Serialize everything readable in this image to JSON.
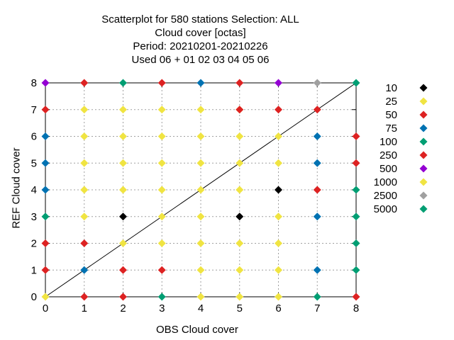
{
  "title_lines": [
    "Scatterplot for  580 stations Selection: ALL",
    "Cloud cover [octas]",
    "Period: 20210201-20210226",
    "Used  06  + 01 02 03 04 05 06"
  ],
  "chart_data": {
    "type": "scatter",
    "xlabel": "OBS Cloud cover",
    "ylabel": "REF Cloud cover",
    "xlim": [
      0,
      8
    ],
    "ylim": [
      0,
      8
    ],
    "xticks": [
      "0",
      "1",
      "2",
      "3",
      "4",
      "5",
      "6",
      "7",
      "8"
    ],
    "yticks": [
      "0",
      "1",
      "2",
      "3",
      "4",
      "5",
      "6",
      "7",
      "8"
    ],
    "grid": true,
    "diagonal": true,
    "legend_position": "right",
    "series": [
      {
        "name": "10",
        "color": "#000000",
        "points": [
          [
            2,
            3
          ],
          [
            5,
            3
          ],
          [
            6,
            4
          ]
        ]
      },
      {
        "name": "25",
        "color": "#f0e442",
        "points": [
          [
            0,
            0
          ],
          [
            1,
            7
          ],
          [
            2,
            7
          ],
          [
            3,
            7
          ],
          [
            4,
            7
          ],
          [
            5,
            7
          ],
          [
            1,
            6
          ],
          [
            2,
            6
          ],
          [
            3,
            6
          ],
          [
            4,
            6
          ],
          [
            5,
            6
          ],
          [
            6,
            6
          ],
          [
            1,
            5
          ],
          [
            2,
            5
          ],
          [
            3,
            5
          ],
          [
            4,
            5
          ],
          [
            5,
            5
          ],
          [
            6,
            5
          ],
          [
            1,
            4
          ],
          [
            2,
            4
          ],
          [
            3,
            4
          ],
          [
            4,
            4
          ],
          [
            5,
            4
          ],
          [
            1,
            3
          ],
          [
            3,
            3
          ],
          [
            4,
            3
          ],
          [
            6,
            3
          ],
          [
            3,
            2
          ],
          [
            4,
            2
          ],
          [
            5,
            2
          ],
          [
            6,
            2
          ],
          [
            2,
            2
          ],
          [
            4,
            1
          ],
          [
            5,
            1
          ],
          [
            6,
            1
          ],
          [
            4,
            0
          ],
          [
            5,
            0
          ],
          [
            6,
            0
          ]
        ]
      },
      {
        "name": "50",
        "color": "#dd2222",
        "points": [
          [
            1,
            8
          ],
          [
            3,
            8
          ],
          [
            5,
            8
          ],
          [
            0,
            7
          ],
          [
            5,
            7
          ],
          [
            6,
            7
          ],
          [
            7,
            7
          ],
          [
            8,
            6
          ],
          [
            8,
            5
          ],
          [
            7,
            4
          ],
          [
            0,
            2
          ],
          [
            1,
            2
          ],
          [
            0,
            1
          ],
          [
            2,
            1
          ],
          [
            3,
            1
          ],
          [
            1,
            0
          ],
          [
            2,
            0
          ],
          [
            8,
            0
          ]
        ]
      },
      {
        "name": "75",
        "color": "#0072b2",
        "points": [
          [
            4,
            8
          ],
          [
            0,
            6
          ],
          [
            0,
            5
          ],
          [
            0,
            4
          ],
          [
            7,
            6
          ],
          [
            7,
            5
          ],
          [
            7,
            3
          ],
          [
            1,
            1
          ],
          [
            7,
            1
          ]
        ]
      },
      {
        "name": "100",
        "color": "#009e73",
        "points": [
          [
            2,
            8
          ],
          [
            8,
            8
          ],
          [
            0,
            3
          ],
          [
            8,
            4
          ],
          [
            8,
            3
          ],
          [
            8,
            2
          ],
          [
            8,
            1
          ],
          [
            3,
            0
          ],
          [
            7,
            0
          ]
        ]
      },
      {
        "name": "250",
        "color": "#dd2222",
        "points": []
      },
      {
        "name": "500",
        "color": "#9400d3",
        "points": [
          [
            0,
            8
          ],
          [
            6,
            8
          ]
        ]
      },
      {
        "name": "1000",
        "color": "#f0e442",
        "points": []
      },
      {
        "name": "2500",
        "color": "#a0a0a0",
        "points": [
          [
            7,
            8
          ]
        ]
      },
      {
        "name": "5000",
        "color": "#009e73",
        "points": []
      }
    ]
  }
}
